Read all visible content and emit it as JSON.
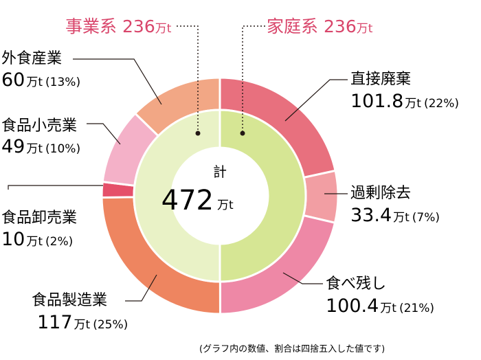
{
  "chart_data": {
    "type": "pie",
    "style": "double-donut",
    "total": {
      "label": "計",
      "value": "472",
      "unit": "万t"
    },
    "groups": [
      {
        "name": "事業系",
        "value": "236",
        "unit": "万t",
        "color": "#d9466b"
      },
      {
        "name": "家庭系",
        "value": "236",
        "unit": "万t",
        "color": "#d9466b"
      }
    ],
    "inner_ring": [
      {
        "name": "家庭系",
        "value": 236,
        "color": "#d6e694"
      },
      {
        "name": "事業系",
        "value": 236,
        "color": "#e9f2c6"
      }
    ],
    "outer_ring": [
      {
        "name": "直接廃棄",
        "value": 101.8,
        "value_text": "101.8",
        "unit": "万t",
        "pct": "(22%)",
        "color": "#e8707e"
      },
      {
        "name": "過剰除去",
        "value": 33.4,
        "value_text": "33.4",
        "unit": "万t",
        "pct": "(7%)",
        "color": "#f29ea3"
      },
      {
        "name": "食べ残し",
        "value": 100.4,
        "value_text": "100.4",
        "unit": "万t",
        "pct": "(21%)",
        "color": "#ee88a6"
      },
      {
        "name": "食品製造業",
        "value": 117,
        "value_text": "117",
        "unit": "万t",
        "pct": "(25%)",
        "color": "#ee8560"
      },
      {
        "name": "食品卸売業",
        "value": 10,
        "value_text": "10",
        "unit": "万t",
        "pct": "(2%)",
        "color": "#e5506a"
      },
      {
        "name": "食品小売業",
        "value": 49,
        "value_text": "49",
        "unit": "万t",
        "pct": "(10%)",
        "color": "#f4b1c8"
      },
      {
        "name": "外食産業",
        "value": 60,
        "value_text": "60",
        "unit": "万t",
        "pct": "(13%)",
        "color": "#f2a785"
      }
    ],
    "note": "(グラフ内の数値、割合は四捨五入した値です)"
  }
}
